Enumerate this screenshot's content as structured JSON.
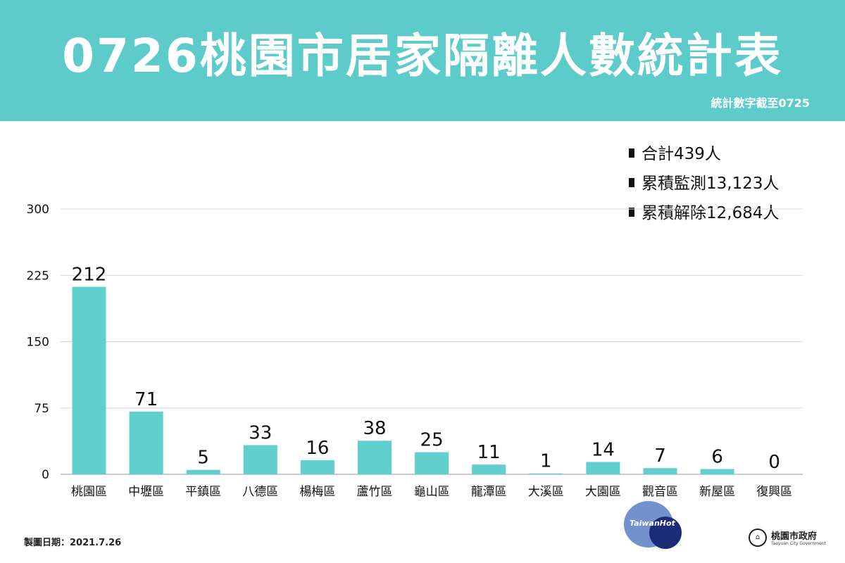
{
  "header": {
    "title": "0726桃園市居家隔離人數統計表",
    "subtitle": "統計數字截至0725"
  },
  "summary": [
    {
      "label": "合計439人"
    },
    {
      "label": "累積監測13,123人"
    },
    {
      "label": "累積解除12,684人"
    }
  ],
  "footer": {
    "date_label": "製圖日期：2021.7.26",
    "watermark_text": "TaiwanHot",
    "gov_logo_name": "桃園市政府",
    "gov_logo_en": "Taoyuan City Government"
  },
  "colors": {
    "header_bg": "#5ecbcb",
    "bar": "#62cfcf",
    "grid": "#d9d9d9",
    "text": "#111111"
  },
  "chart_data": {
    "type": "bar",
    "categories": [
      "桃園區",
      "中壢區",
      "平鎮區",
      "八德區",
      "楊梅區",
      "蘆竹區",
      "龜山區",
      "龍潭區",
      "大溪區",
      "大園區",
      "觀音區",
      "新屋區",
      "復興區"
    ],
    "values": [
      212,
      71,
      5,
      33,
      16,
      38,
      25,
      11,
      1,
      14,
      7,
      6,
      0
    ],
    "ylim": [
      0,
      300
    ],
    "yticks": [
      0,
      75,
      150,
      225,
      300
    ],
    "grid": true,
    "data_labels": true,
    "title": "",
    "xlabel": "",
    "ylabel": ""
  }
}
